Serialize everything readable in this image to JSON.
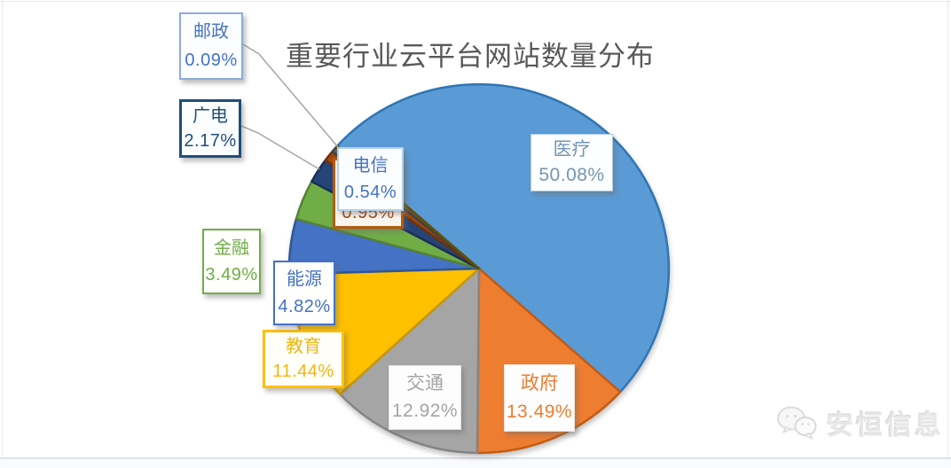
{
  "title": "重要行业云平台网站数量分布",
  "chart_data": {
    "type": "pie",
    "title": "重要行业云平台网站数量分布",
    "unit": "%",
    "direction": "clockwise",
    "rotation_deg_clockwise_from_12": 311.67,
    "legend_position": "none",
    "labels_style": "callout boxes with category name and percentage",
    "slices": [
      {
        "label": "医疗",
        "value": 50.08,
        "display": "50.08%",
        "color": "#5B9BD5",
        "edge": "#2E75B6"
      },
      {
        "label": "政府",
        "value": 13.49,
        "display": "13.49%",
        "color": "#ED7D31",
        "edge": "#C55A11"
      },
      {
        "label": "交通",
        "value": 12.92,
        "display": "12.92%",
        "color": "#A5A5A5",
        "edge": "#848484"
      },
      {
        "label": "教育",
        "value": 11.44,
        "display": "11.44%",
        "color": "#FFC000",
        "edge": "#C89600"
      },
      {
        "label": "能源",
        "value": 4.82,
        "display": "4.82%",
        "color": "#4472C4",
        "edge": "#2F5597"
      },
      {
        "label": "金融",
        "value": 3.49,
        "display": "3.49%",
        "color": "#70AD47",
        "edge": "#548235"
      },
      {
        "label": "广电",
        "value": 2.17,
        "display": "2.17%",
        "color": "#264478",
        "edge": "#1A2F52"
      },
      {
        "label": "",
        "value": 0.95,
        "display": "0.95%",
        "color": "#9E480E",
        "edge": "#6E3209",
        "label_hidden": true
      },
      {
        "label": "电信",
        "value": 0.54,
        "display": "0.54%",
        "color": "#636363",
        "edge": "#424242"
      },
      {
        "label": "邮政",
        "value": 0.09,
        "display": "0.09%",
        "color": "#997300",
        "edge": "#665000"
      }
    ]
  },
  "callouts": [
    {
      "slice": 0,
      "name": "medical",
      "border": "#AFCBE5",
      "text_color": "#7396B4",
      "bg": "#fdfeff"
    },
    {
      "slice": 9,
      "name": "postal",
      "border": "#8FAADC",
      "text_color": "#4472C4",
      "bg": "#fcfdfe"
    },
    {
      "slice": 6,
      "name": "broadcast",
      "border": "#1F4E79",
      "text_color": "#1F4E79",
      "bg": "#fcfdfe"
    },
    {
      "slice": 7,
      "name": "hidden",
      "border": "#B55A10",
      "text_color": "#9E480E",
      "bg": "#fbf5ef"
    },
    {
      "slice": 8,
      "name": "telecom",
      "border": "#B4D0E8",
      "text_color": "#4472C4",
      "bg": "#fbfdff"
    },
    {
      "slice": 5,
      "name": "finance",
      "border": "#70AD47",
      "text_color": "#70AD47",
      "bg": "#fefefd"
    },
    {
      "slice": 4,
      "name": "energy",
      "border": "#4472C4",
      "text_color": "#4472C4",
      "bg": "#fefefd"
    },
    {
      "slice": 3,
      "name": "education",
      "border": "#FFC000",
      "text_color": "#F0B60E",
      "bg": "#fffef9"
    },
    {
      "slice": 2,
      "name": "transport",
      "border": "#E2E2E2",
      "text_color": "#A5A5A5",
      "bg": "#fdfdfd"
    },
    {
      "slice": 1,
      "name": "government",
      "border": "#F3E3D7",
      "text_color": "#ED7D31",
      "bg": "#fdfdfd"
    }
  ],
  "watermark": {
    "text": "安恒信息",
    "icon": "wechat-chat-bubbles"
  }
}
